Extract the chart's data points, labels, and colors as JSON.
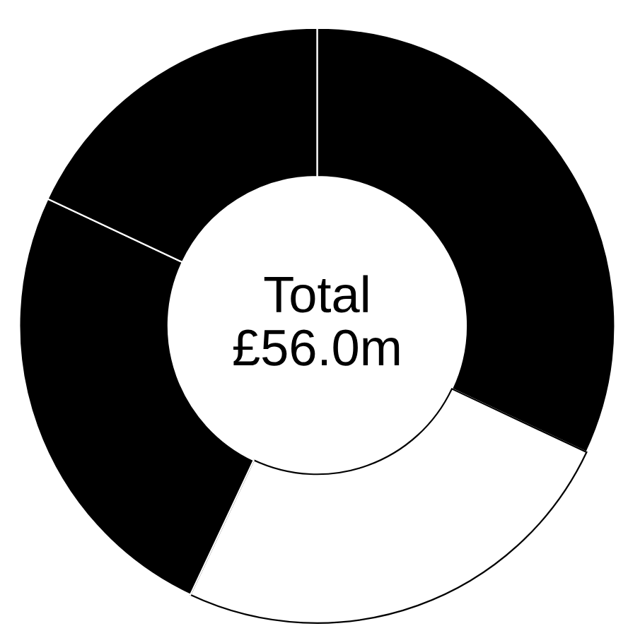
{
  "chart_data": {
    "type": "donut",
    "categories": [
      null,
      null,
      null,
      null
    ],
    "values": [
      32,
      25,
      25,
      18
    ],
    "colors": [
      "#000000",
      "#ffffff",
      "#000000",
      "#000000"
    ],
    "annotations": [
      "Total\n£56.0m"
    ]
  }
}
